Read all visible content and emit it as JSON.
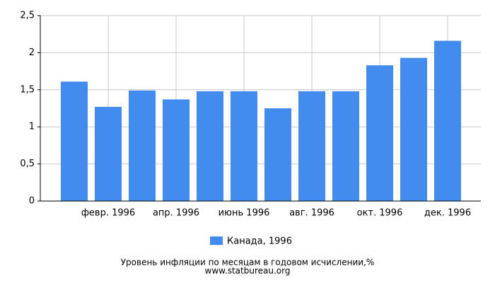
{
  "chart_data": {
    "type": "bar",
    "title": "Уровень инфляции по месяцам в годовом исчислении,%",
    "source": "www.statbureau.org",
    "categories": [
      null,
      "февр. 1996",
      null,
      "апр. 1996",
      null,
      "июнь 1996",
      null,
      "авг. 1996",
      null,
      "окт. 1996",
      null,
      "дек. 1996"
    ],
    "series": [
      {
        "name": "Канада, 1996",
        "color": "#428bef",
        "values": [
          1.61,
          1.27,
          1.49,
          1.37,
          1.48,
          1.48,
          1.25,
          1.48,
          1.48,
          1.83,
          1.93,
          2.16
        ]
      }
    ],
    "ylim": [
      0,
      2.5
    ],
    "yticks": [
      0,
      {
        "value": 0.5,
        "label": "0,5"
      },
      1,
      {
        "value": 1.5,
        "label": "1,5"
      },
      2,
      {
        "value": 2.5,
        "label": "2,5"
      }
    ],
    "grid": true,
    "legend": "bottom"
  }
}
